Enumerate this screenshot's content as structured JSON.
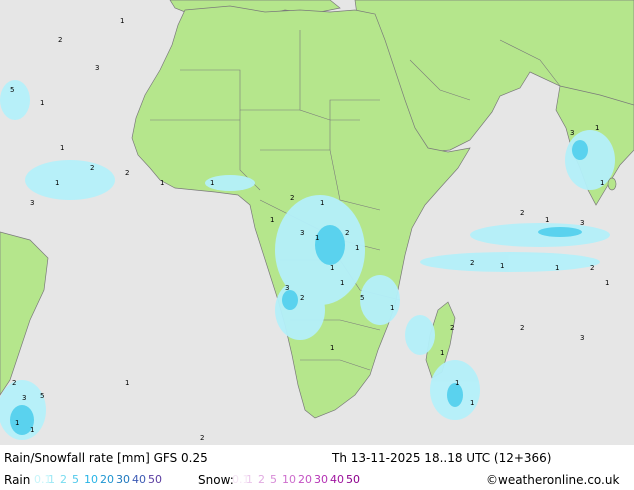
{
  "map": {
    "country_colors": {
      "land": "#b5e68c",
      "sea": "#e6e6e6",
      "border": "#7a7a7a",
      "precip_light": "#b4f0fa",
      "precip_mid": "#5ad2ee"
    },
    "precip_markers": [
      "1",
      "2",
      "3",
      "5",
      "1",
      "1",
      "2",
      "1",
      "3",
      "2",
      "1",
      "1",
      "2",
      "1",
      "1",
      "3",
      "1",
      "2",
      "1",
      "1"
    ]
  },
  "footer": {
    "title": "Rain/Snowfall rate [mm] GFS 0.25",
    "datetime": "Th 13-11-2025 18..18 UTC (12+366)",
    "rain_label": "Rain",
    "rain_scale": [
      "0.1",
      "1",
      "2",
      "5",
      "10",
      "20",
      "30",
      "40",
      "50"
    ],
    "rain_colors": [
      "#c8f5fa",
      "#9ee8f5",
      "#78dcf0",
      "#50c8eb",
      "#28b4e6",
      "#1e96d2",
      "#1e78be",
      "#3c5ab4",
      "#5a3ca0"
    ],
    "snow_label": "Snow:",
    "snow_scale": [
      "0.1",
      "1",
      "2",
      "5",
      "10",
      "20",
      "30",
      "40",
      "50"
    ],
    "snow_colors": [
      "#f5e6f5",
      "#ebc8eb",
      "#e1aae1",
      "#d78cd7",
      "#cd6ecd",
      "#c350c3",
      "#b432b4",
      "#a014a0",
      "#8c008c"
    ],
    "credit": "©weatheronline.co.uk"
  }
}
